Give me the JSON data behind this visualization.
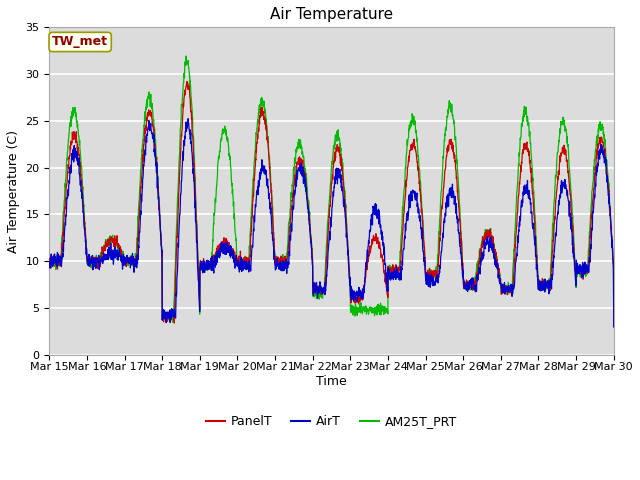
{
  "title": "Air Temperature",
  "ylabel": "Air Temperature (C)",
  "xlabel": "Time",
  "annotation": "TW_met",
  "annotation_color": "#8B0000",
  "annotation_bg": "#FFFFF0",
  "annotation_border": "#999900",
  "ylim": [
    0,
    35
  ],
  "yticks": [
    0,
    5,
    10,
    15,
    20,
    25,
    30,
    35
  ],
  "date_labels": [
    "Mar 15",
    "Mar 16",
    "Mar 17",
    "Mar 18",
    "Mar 19",
    "Mar 20",
    "Mar 21",
    "Mar 22",
    "Mar 23",
    "Mar 24",
    "Mar 25",
    "Mar 26",
    "Mar 27",
    "Mar 28",
    "Mar 29",
    "Mar 30"
  ],
  "colors": {
    "PanelT": "#CC0000",
    "AirT": "#0000CC",
    "AM25T_PRT": "#00BB00"
  },
  "line_width": 0.9,
  "fig_bg_color": "#FFFFFF",
  "plot_bg_color": "#DCDCDC",
  "grid_color": "#FFFFFF",
  "title_fontsize": 11,
  "label_fontsize": 9,
  "tick_fontsize": 8
}
